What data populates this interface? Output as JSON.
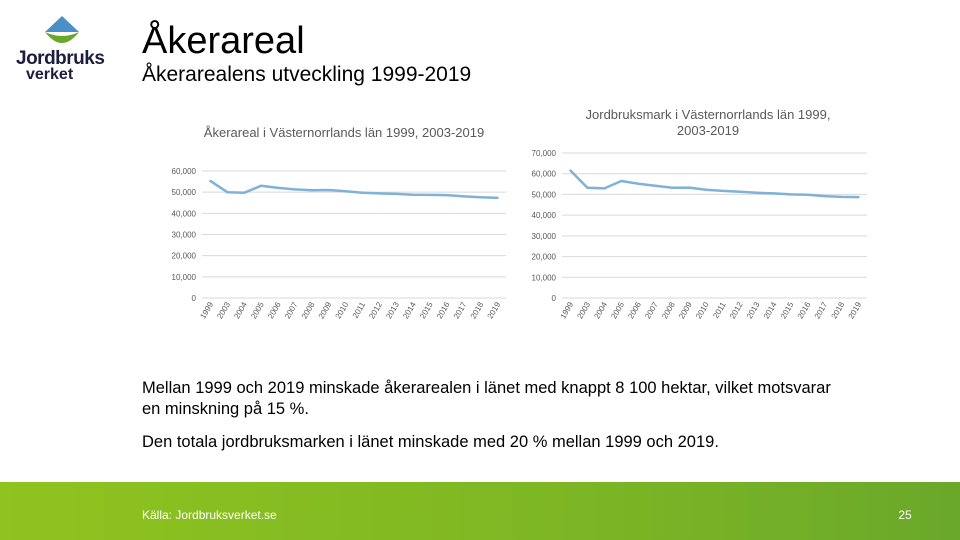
{
  "logo": {
    "line1": "Jordbruks",
    "line2": "verket"
  },
  "title": "Åkerareal",
  "subtitle": "Åkerarealens utveckling 1999-2019",
  "body": {
    "paragraph1": "Mellan 1999 och 2019 minskade åkerarealen i länet med knappt 8 100 hektar, vilket motsvarar en minskning på 15 %.",
    "paragraph2": "Den totala jordbruksmarken i länet minskade med 20 % mellan 1999 och 2019."
  },
  "footer": {
    "source": "Källa: Jordbruksverket.se",
    "page": "25"
  },
  "colors": {
    "line": "#7eb2d8",
    "grid": "#d9d9d9",
    "footer": "#8fc31f",
    "logoBlue": "#4a90c8",
    "logoGreen": "#6aa82a"
  },
  "chart_data": [
    {
      "type": "line",
      "title": "Åkerareal i Västernorrlands län 1999, 2003-2019",
      "categories": [
        "1999",
        "2003",
        "2004",
        "2005",
        "2006",
        "2007",
        "2008",
        "2009",
        "2010",
        "2011",
        "2012",
        "2013",
        "2014",
        "2015",
        "2016",
        "2017",
        "2018",
        "2019"
      ],
      "values": [
        55300,
        50000,
        49700,
        53000,
        52000,
        51300,
        50900,
        51000,
        50400,
        49700,
        49400,
        49200,
        48800,
        48700,
        48600,
        48000,
        47600,
        47300
      ],
      "ylim": [
        0,
        60000
      ],
      "yticks": [
        "0",
        "10,000",
        "20,000",
        "30,000",
        "40,000",
        "50,000",
        "60,000"
      ]
    },
    {
      "type": "line",
      "title": "Jordbruksmark i Västernorrlands län 1999, 2003-2019",
      "categories": [
        "1999",
        "2003",
        "2004",
        "2005",
        "2006",
        "2007",
        "2008",
        "2009",
        "2010",
        "2011",
        "2012",
        "2013",
        "2014",
        "2015",
        "2016",
        "2017",
        "2018",
        "2019"
      ],
      "values": [
        61500,
        53200,
        52900,
        56500,
        55200,
        54200,
        53200,
        53300,
        52300,
        51700,
        51300,
        50800,
        50500,
        50000,
        49800,
        49200,
        48800,
        48700
      ],
      "ylim": [
        0,
        70000
      ],
      "yticks": [
        "0",
        "10,000",
        "20,000",
        "30,000",
        "40,000",
        "50,000",
        "60,000",
        "70,000"
      ]
    }
  ]
}
